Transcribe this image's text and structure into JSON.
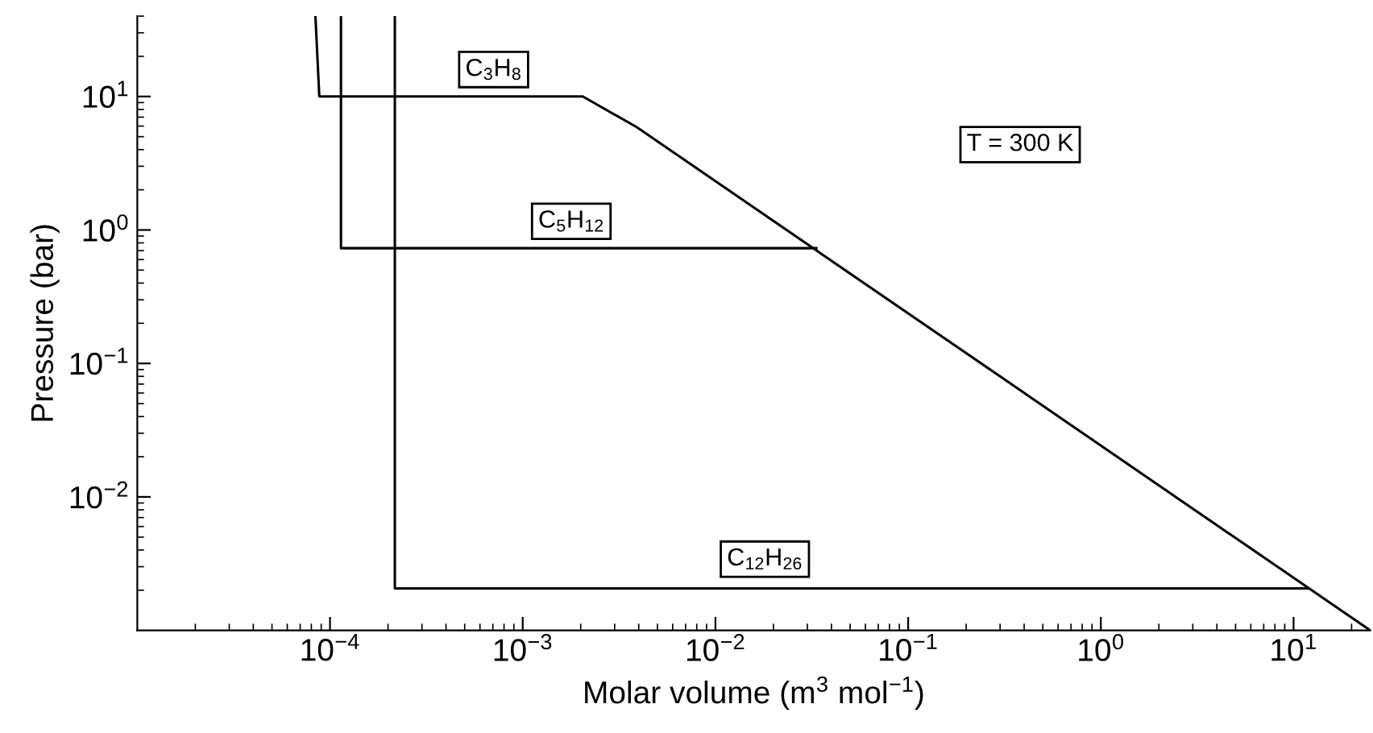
{
  "chart_data": {
    "type": "line",
    "log": "xy",
    "grid": false,
    "marker": "none",
    "line_style": "solid",
    "xlabel": "Molar volume (m$^{3}$ mol$^{−1}$)",
    "ylabel": "Pressure (bar)",
    "xlim": [
      1e-05,
      25
    ],
    "ylim": [
      0.001,
      40
    ],
    "xticks": [
      {
        "value": 0.0001,
        "label": "10$^{−4}$"
      },
      {
        "value": 0.001,
        "label": "10$^{−3}$"
      },
      {
        "value": 0.01,
        "label": "10$^{−2}$"
      },
      {
        "value": 0.1,
        "label": "10$^{−1}$"
      },
      {
        "value": 1,
        "label": "10$^{0}$"
      },
      {
        "value": 10,
        "label": "10$^{1}$"
      }
    ],
    "yticks": [
      {
        "value": 0.01,
        "label": "10$^{−2}$"
      },
      {
        "value": 0.1,
        "label": "10$^{−1}$"
      },
      {
        "value": 1,
        "label": "10$^{0}$"
      },
      {
        "value": 10,
        "label": "10$^{1}$"
      }
    ],
    "series": [
      {
        "color": "#000000",
        "x": [
          8.4e-05,
          8.8e-05,
          0.00205,
          0.0039,
          25
        ],
        "values": [
          40,
          10,
          10,
          5.9,
          0.001
        ]
      },
      {
        "color": "#000000",
        "x": [
          0.000114,
          0.000114,
          0.0334
        ],
        "values": [
          40,
          0.73,
          0.73
        ]
      },
      {
        "color": "#000000",
        "x": [
          0.000217,
          0.000217,
          11.9
        ],
        "values": [
          40,
          0.00206,
          0.00206
        ]
      }
    ],
    "annotations": [
      "C$_{3}$H$_{8}$",
      "C$_{5}$H$_{12}$",
      "C$_{12}$H$_{26}$",
      "T = 300 K"
    ]
  }
}
